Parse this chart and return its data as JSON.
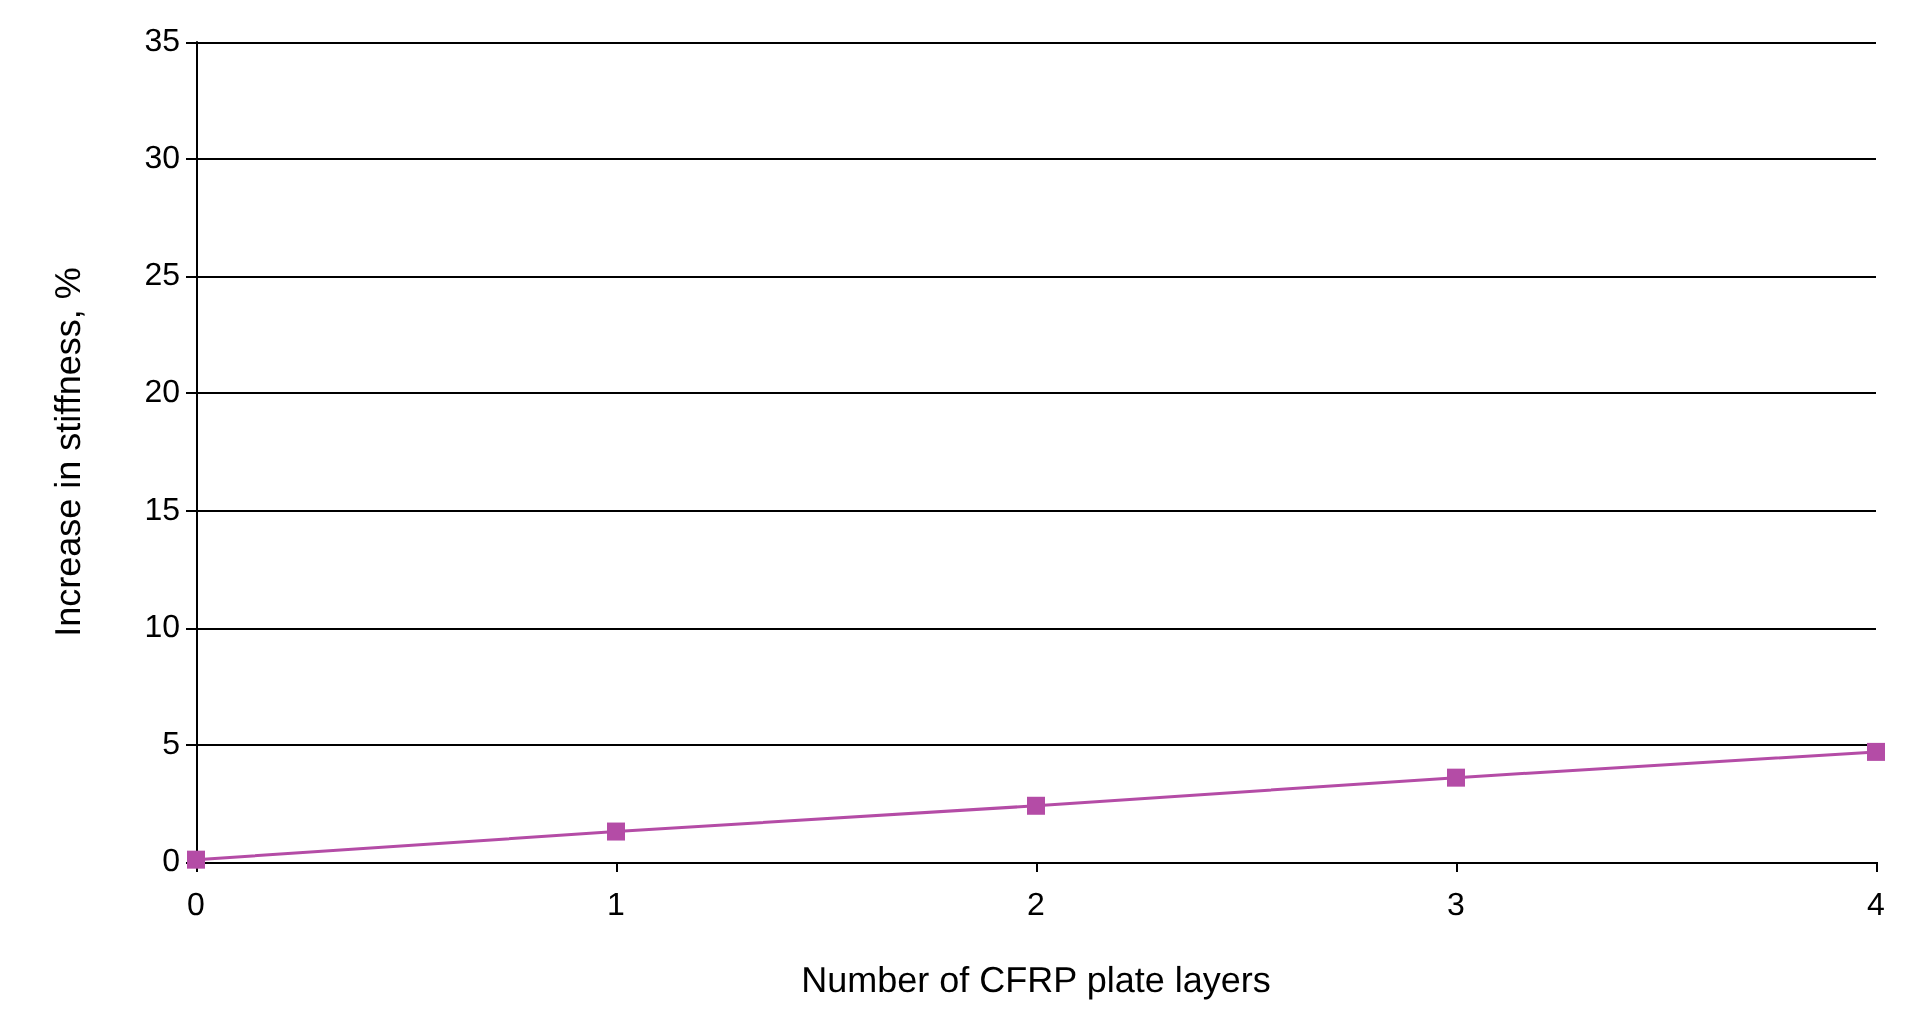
{
  "chart_data": {
    "type": "line",
    "xlabel": "Number of CFRP plate layers",
    "ylabel": "Increase in stiffness, %",
    "x": [
      0,
      1,
      2,
      3,
      4
    ],
    "series": [
      {
        "color": "#b44ca6",
        "values": [
          0.1,
          1.3,
          2.4,
          3.6,
          4.7
        ]
      }
    ],
    "xlim": [
      0,
      4
    ],
    "xticks": [
      0,
      1,
      2,
      3,
      4
    ],
    "ylim": [
      0,
      35
    ],
    "yticks": [
      0,
      5,
      10,
      15,
      20,
      25,
      30,
      35
    ],
    "grid": "y",
    "marker": "square",
    "line_style": "solid"
  }
}
